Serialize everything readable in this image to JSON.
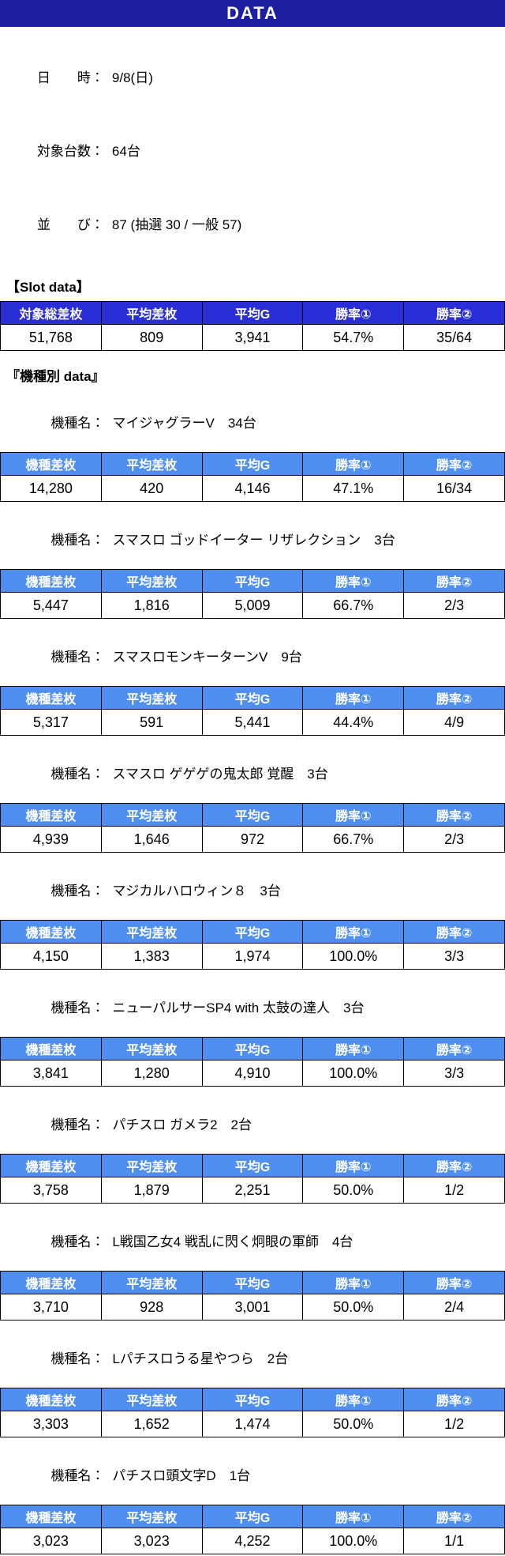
{
  "title": "DATA",
  "info": [
    {
      "label": "日　　時：",
      "value": "9/8(日)"
    },
    {
      "label": "対象台数：",
      "value": "64台"
    },
    {
      "label": "並　　び：",
      "value": "87 (抽選 30 / 一般 57)"
    }
  ],
  "slot_section": {
    "heading": "【Slot data】",
    "headers": [
      "対象総差枚",
      "平均差枚",
      "平均G",
      "勝率①",
      "勝率②"
    ],
    "values": [
      "51,768",
      "809",
      "3,941",
      "54.7%",
      "35/64"
    ]
  },
  "machine_section": {
    "heading": "『機種別 data』",
    "name_label": "機種名：",
    "headers": [
      "機種差枚",
      "平均差枚",
      "平均G",
      "勝率①",
      "勝率②"
    ],
    "machines": [
      {
        "name": "マイジャグラーV　34台",
        "values": [
          "14,280",
          "420",
          "4,146",
          "47.1%",
          "16/34"
        ]
      },
      {
        "name": "スマスロ ゴッドイーター リザレクション　3台",
        "values": [
          "5,447",
          "1,816",
          "5,009",
          "66.7%",
          "2/3"
        ]
      },
      {
        "name": "スマスロモンキーターンV　9台",
        "values": [
          "5,317",
          "591",
          "5,441",
          "44.4%",
          "4/9"
        ]
      },
      {
        "name": "スマスロ ゲゲゲの鬼太郎 覚醒　3台",
        "values": [
          "4,939",
          "1,646",
          "972",
          "66.7%",
          "2/3"
        ]
      },
      {
        "name": "マジカルハロウィン８　3台",
        "values": [
          "4,150",
          "1,383",
          "1,974",
          "100.0%",
          "3/3"
        ]
      },
      {
        "name": "ニューパルサーSP4 with 太鼓の達人　3台",
        "values": [
          "3,841",
          "1,280",
          "4,910",
          "100.0%",
          "3/3"
        ]
      },
      {
        "name": "パチスロ ガメラ2　2台",
        "values": [
          "3,758",
          "1,879",
          "2,251",
          "50.0%",
          "1/2"
        ]
      },
      {
        "name": "L戦国乙女4 戦乱に閃く炯眼の軍師　4台",
        "values": [
          "3,710",
          "928",
          "3,001",
          "50.0%",
          "2/4"
        ]
      },
      {
        "name": "Lパチスロうる星やつら　2台",
        "values": [
          "3,303",
          "1,652",
          "1,474",
          "50.0%",
          "1/2"
        ]
      },
      {
        "name": "パチスロ頭文字D　1台",
        "values": [
          "3,023",
          "3,023",
          "4,252",
          "100.0%",
          "1/1"
        ]
      }
    ]
  },
  "colors": {
    "title_bar": "#1b1fa0",
    "summary_header": "#2a2ed6",
    "machine_header": "#4e8ff0",
    "header_text": "#ffffff",
    "body_text": "#000000"
  }
}
